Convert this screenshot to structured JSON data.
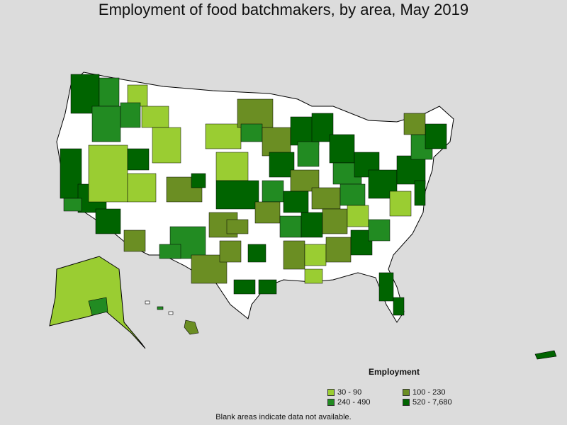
{
  "title": "Employment of food batchmakers, by area, May 2019",
  "legend": {
    "title": "Employment",
    "items": [
      {
        "label": "30 - 90",
        "color": "#9acd32"
      },
      {
        "label": "100 - 230",
        "color": "#6b8e23"
      },
      {
        "label": "240 - 490",
        "color": "#228b22"
      },
      {
        "label": "520 - 7,680",
        "color": "#006400"
      }
    ]
  },
  "note": "Blank areas indicate data not available.",
  "colors": {
    "background": "#dcdcdc",
    "no_data": "#ffffff",
    "border": "#000000"
  }
}
